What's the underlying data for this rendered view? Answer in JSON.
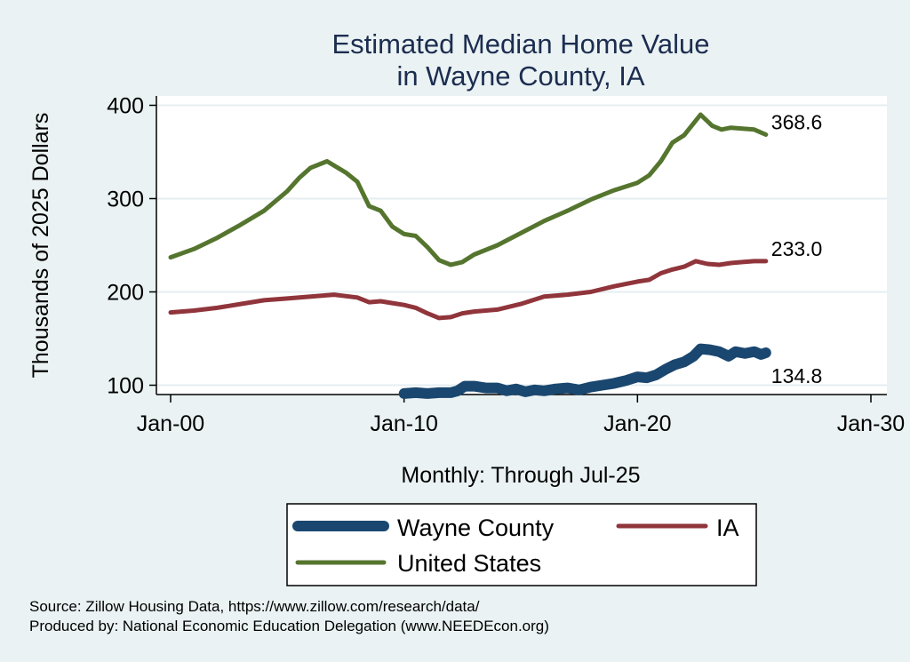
{
  "chart_data": {
    "type": "line",
    "title": [
      "Estimated Median Home Value",
      "in Wayne County, IA"
    ],
    "xlabel": "Monthly: Through Jul-25",
    "ylabel": "Thousands of 2025 Dollars",
    "xlim": [
      2000,
      2030
    ],
    "ylim": [
      90,
      410
    ],
    "yticks": [
      100,
      200,
      300,
      400
    ],
    "xticks": [
      {
        "value": 2000,
        "label": "Jan-00"
      },
      {
        "value": 2010,
        "label": "Jan-10"
      },
      {
        "value": 2020,
        "label": "Jan-20"
      },
      {
        "value": 2030,
        "label": "Jan-30"
      }
    ],
    "grid": true,
    "legend_position": "bottom",
    "series": [
      {
        "name": "Wayne County",
        "color": "#1a476f",
        "end_label": "134.8",
        "points": [
          [
            2010.0,
            91
          ],
          [
            2010.5,
            92
          ],
          [
            2011.0,
            91
          ],
          [
            2011.5,
            92
          ],
          [
            2012.0,
            92
          ],
          [
            2012.3,
            94
          ],
          [
            2012.6,
            99
          ],
          [
            2013.0,
            99
          ],
          [
            2013.5,
            97
          ],
          [
            2014.0,
            97
          ],
          [
            2014.4,
            94
          ],
          [
            2014.8,
            96
          ],
          [
            2015.2,
            93
          ],
          [
            2015.6,
            95
          ],
          [
            2016.0,
            94
          ],
          [
            2016.5,
            96
          ],
          [
            2017.0,
            97
          ],
          [
            2017.5,
            95
          ],
          [
            2018.0,
            98
          ],
          [
            2018.5,
            100
          ],
          [
            2019.0,
            102
          ],
          [
            2019.5,
            105
          ],
          [
            2020.0,
            109
          ],
          [
            2020.4,
            108
          ],
          [
            2020.8,
            111
          ],
          [
            2021.2,
            117
          ],
          [
            2021.6,
            122
          ],
          [
            2022.0,
            125
          ],
          [
            2022.4,
            131
          ],
          [
            2022.7,
            139
          ],
          [
            2023.1,
            138
          ],
          [
            2023.5,
            136
          ],
          [
            2023.9,
            131
          ],
          [
            2024.2,
            136
          ],
          [
            2024.6,
            134
          ],
          [
            2025.0,
            136
          ],
          [
            2025.3,
            133
          ],
          [
            2025.5,
            134.8
          ]
        ]
      },
      {
        "name": "IA",
        "color": "#90353b",
        "end_label": "233.0",
        "points": [
          [
            2000.0,
            178
          ],
          [
            2001.0,
            180
          ],
          [
            2002.0,
            183
          ],
          [
            2003.0,
            187
          ],
          [
            2004.0,
            191
          ],
          [
            2005.0,
            193
          ],
          [
            2006.0,
            195
          ],
          [
            2007.0,
            197
          ],
          [
            2008.0,
            194
          ],
          [
            2008.5,
            189
          ],
          [
            2009.0,
            190
          ],
          [
            2009.5,
            188
          ],
          [
            2010.0,
            186
          ],
          [
            2010.5,
            183
          ],
          [
            2011.0,
            177
          ],
          [
            2011.5,
            172
          ],
          [
            2012.0,
            173
          ],
          [
            2012.5,
            177
          ],
          [
            2013.0,
            179
          ],
          [
            2014.0,
            181
          ],
          [
            2015.0,
            187
          ],
          [
            2016.0,
            195
          ],
          [
            2017.0,
            197
          ],
          [
            2018.0,
            200
          ],
          [
            2019.0,
            206
          ],
          [
            2020.0,
            211
          ],
          [
            2020.5,
            213
          ],
          [
            2021.0,
            220
          ],
          [
            2021.5,
            224
          ],
          [
            2022.0,
            227
          ],
          [
            2022.5,
            233
          ],
          [
            2023.0,
            230
          ],
          [
            2023.5,
            229
          ],
          [
            2024.0,
            231
          ],
          [
            2024.5,
            232
          ],
          [
            2025.0,
            233
          ],
          [
            2025.5,
            233.0
          ]
        ]
      },
      {
        "name": "United States",
        "color": "#55752f",
        "end_label": "368.6",
        "points": [
          [
            2000.0,
            237
          ],
          [
            2001.0,
            246
          ],
          [
            2002.0,
            258
          ],
          [
            2003.0,
            272
          ],
          [
            2004.0,
            287
          ],
          [
            2005.0,
            308
          ],
          [
            2005.5,
            322
          ],
          [
            2006.0,
            333
          ],
          [
            2006.7,
            340
          ],
          [
            2007.5,
            328
          ],
          [
            2008.0,
            318
          ],
          [
            2008.5,
            292
          ],
          [
            2009.0,
            287
          ],
          [
            2009.5,
            270
          ],
          [
            2010.0,
            262
          ],
          [
            2010.5,
            260
          ],
          [
            2011.0,
            248
          ],
          [
            2011.5,
            234
          ],
          [
            2012.0,
            229
          ],
          [
            2012.5,
            232
          ],
          [
            2013.0,
            240
          ],
          [
            2014.0,
            250
          ],
          [
            2015.0,
            263
          ],
          [
            2016.0,
            276
          ],
          [
            2017.0,
            287
          ],
          [
            2018.0,
            299
          ],
          [
            2019.0,
            309
          ],
          [
            2020.0,
            317
          ],
          [
            2020.5,
            325
          ],
          [
            2021.0,
            340
          ],
          [
            2021.5,
            360
          ],
          [
            2022.0,
            368
          ],
          [
            2022.7,
            390
          ],
          [
            2023.2,
            378
          ],
          [
            2023.6,
            374
          ],
          [
            2024.0,
            376
          ],
          [
            2024.5,
            375
          ],
          [
            2025.0,
            374
          ],
          [
            2025.5,
            368.6
          ]
        ]
      }
    ]
  },
  "footer": {
    "source": "Source: Zillow Housing Data, https://www.zillow.com/research/data/",
    "produced": "Produced by: National Economic Education Delegation (www.NEEDEcon.org)"
  }
}
